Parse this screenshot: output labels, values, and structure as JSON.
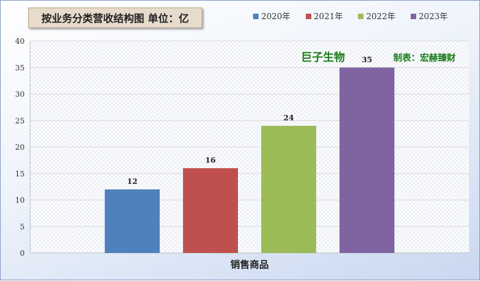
{
  "title": "按业务分类营收结构图 单位：亿",
  "chart_data": {
    "type": "bar",
    "categories": [
      "销售商品"
    ],
    "xlabel": "销售商品",
    "ylabel": "",
    "ylim": [
      0,
      40
    ],
    "yticks": [
      0,
      5,
      10,
      15,
      20,
      25,
      30,
      35,
      40
    ],
    "grid": true,
    "legend_position": "top",
    "series": [
      {
        "name": "2020年",
        "values": [
          12
        ],
        "label": "12",
        "color": "#4f81bd"
      },
      {
        "name": "2021年",
        "values": [
          16
        ],
        "label": "16",
        "color": "#c0504d"
      },
      {
        "name": "2022年",
        "values": [
          24
        ],
        "label": "24",
        "color": "#9bbb59"
      },
      {
        "name": "2023年",
        "values": [
          35
        ],
        "label": "35",
        "color": "#8064a2"
      }
    ],
    "annotations": [
      {
        "text": "巨子生物",
        "color": "#1a7a1a"
      },
      {
        "text": "制表：宏赫臻财",
        "color": "#1a7a1a"
      }
    ]
  }
}
